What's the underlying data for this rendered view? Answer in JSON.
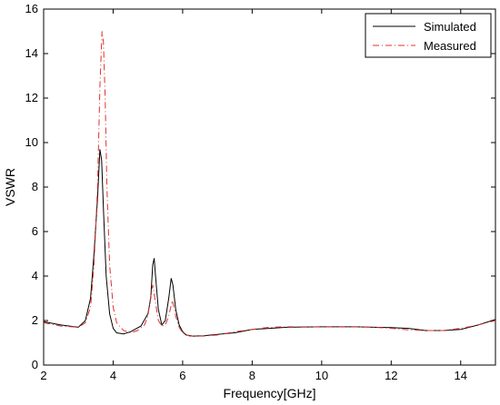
{
  "chart_data": {
    "type": "line",
    "title": "",
    "xlabel": "Frequency[GHz]",
    "ylabel": "VSWR",
    "xlim": [
      2,
      15
    ],
    "ylim": [
      0,
      16
    ],
    "xticks": [
      2,
      4,
      6,
      8,
      10,
      12,
      14
    ],
    "yticks": [
      0,
      2,
      4,
      6,
      8,
      10,
      12,
      14,
      16
    ],
    "grid": false,
    "legend_position": "top-right",
    "series": [
      {
        "name": "Simulated",
        "color": "#000000",
        "style": "solid",
        "x": [
          2.0,
          2.5,
          3.0,
          3.2,
          3.35,
          3.45,
          3.55,
          3.62,
          3.67,
          3.72,
          3.8,
          3.9,
          4.0,
          4.1,
          4.3,
          4.5,
          4.8,
          5.0,
          5.08,
          5.14,
          5.18,
          5.22,
          5.3,
          5.4,
          5.5,
          5.6,
          5.67,
          5.72,
          5.8,
          5.9,
          6.0,
          6.1,
          6.3,
          6.6,
          7.0,
          7.5,
          8.0,
          8.5,
          9.0,
          10.0,
          11.0,
          11.5,
          12.0,
          12.5,
          13.0,
          13.5,
          14.0,
          14.5,
          15.0
        ],
        "y": [
          1.95,
          1.8,
          1.7,
          2.0,
          3.0,
          5.0,
          7.5,
          9.7,
          9.2,
          7.0,
          4.0,
          2.3,
          1.65,
          1.45,
          1.4,
          1.5,
          1.75,
          2.3,
          3.0,
          4.5,
          4.8,
          4.0,
          2.5,
          1.8,
          2.0,
          3.0,
          3.9,
          3.6,
          2.5,
          1.8,
          1.5,
          1.35,
          1.3,
          1.32,
          1.38,
          1.45,
          1.6,
          1.65,
          1.7,
          1.72,
          1.72,
          1.7,
          1.68,
          1.65,
          1.55,
          1.55,
          1.6,
          1.8,
          2.05
        ]
      },
      {
        "name": "Measured",
        "color": "#e03030",
        "style": "dashed",
        "x": [
          2.0,
          2.5,
          3.0,
          3.2,
          3.35,
          3.45,
          3.55,
          3.62,
          3.68,
          3.72,
          3.77,
          3.82,
          3.9,
          4.0,
          4.1,
          4.3,
          4.5,
          4.7,
          4.9,
          5.0,
          5.08,
          5.14,
          5.2,
          5.3,
          5.4,
          5.5,
          5.6,
          5.7,
          5.75,
          5.8,
          5.9,
          6.0,
          6.2,
          6.6,
          7.0,
          7.5,
          8.0,
          8.5,
          9.0,
          10.0,
          11.0,
          11.5,
          12.0,
          12.5,
          13.0,
          13.5,
          14.0,
          14.5,
          15.0
        ],
        "y": [
          1.9,
          1.75,
          1.7,
          1.9,
          2.6,
          4.5,
          8.0,
          12.5,
          15.0,
          14.5,
          12.0,
          8.0,
          4.5,
          2.6,
          1.9,
          1.55,
          1.45,
          1.55,
          1.8,
          2.2,
          3.1,
          3.6,
          3.0,
          2.0,
          1.75,
          1.8,
          2.2,
          2.9,
          2.6,
          2.2,
          1.7,
          1.45,
          1.3,
          1.3,
          1.35,
          1.5,
          1.6,
          1.7,
          1.72,
          1.72,
          1.72,
          1.7,
          1.65,
          1.58,
          1.55,
          1.55,
          1.65,
          1.8,
          2.0
        ]
      }
    ]
  }
}
